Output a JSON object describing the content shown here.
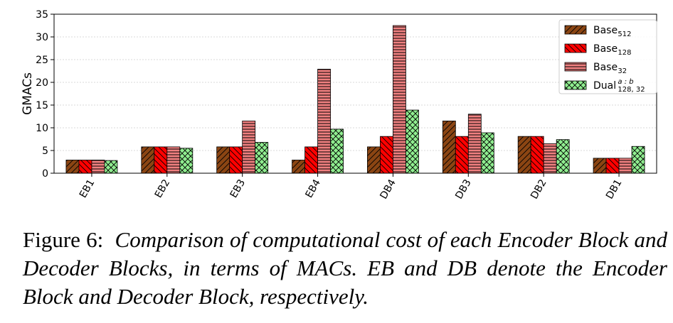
{
  "chart_data": {
    "type": "bar",
    "ylabel": "GMACs",
    "categories": [
      "EB1",
      "EB2",
      "EB3",
      "EB4",
      "DB4",
      "DB3",
      "DB2",
      "DB1"
    ],
    "series": [
      {
        "name": "Base",
        "name_sub": "512",
        "color": "#8b4513",
        "hatch": "/",
        "values": [
          2.9,
          5.8,
          5.8,
          2.9,
          5.8,
          11.5,
          8.1,
          3.3
        ]
      },
      {
        "name": "Base",
        "name_sub": "128",
        "color": "#ff0000",
        "hatch": "\\",
        "values": [
          2.9,
          5.8,
          5.8,
          5.8,
          8.1,
          8.1,
          8.1,
          3.3
        ]
      },
      {
        "name": "Base",
        "name_sub": "32",
        "color": "#f08080",
        "hatch": "-",
        "values": [
          2.9,
          5.8,
          11.5,
          22.9,
          32.5,
          13.0,
          6.5,
          3.3
        ]
      },
      {
        "name": "Dual",
        "name_sup": "a : b",
        "name_sub": "128, 32",
        "color": "#90ee90",
        "hatch": "x",
        "values": [
          2.8,
          5.5,
          6.8,
          9.7,
          13.9,
          8.9,
          7.4,
          5.9
        ]
      }
    ],
    "ylim": [
      0,
      35
    ],
    "yticks": [
      0,
      5,
      10,
      15,
      20,
      25,
      30,
      35
    ],
    "grid": true,
    "legend": "upper right"
  },
  "caption": {
    "label": "Figure 6:",
    "text": "Comparison of computational cost of each Encoder Block and Decoder Blocks, in terms of MACs. EB and DB denote the Encoder Block and Decoder Block, respectively."
  }
}
